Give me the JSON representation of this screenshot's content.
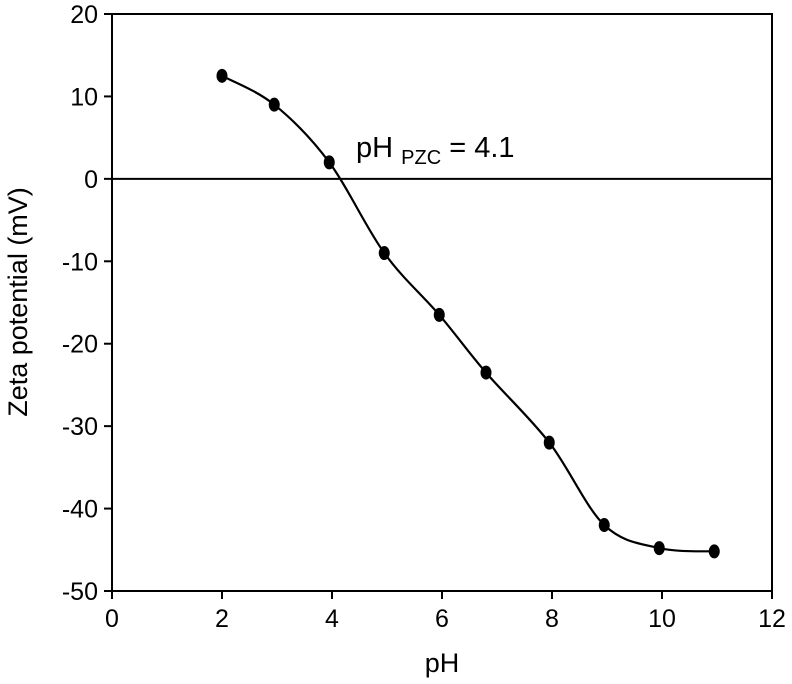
{
  "chart_data": {
    "type": "line",
    "xlabel": "pH",
    "ylabel": "Zeta potential (mV)",
    "xlim": [
      0,
      12
    ],
    "ylim": [
      -50,
      20
    ],
    "xticks": [
      0,
      2,
      4,
      6,
      8,
      10,
      12
    ],
    "yticks": [
      20,
      10,
      0,
      -10,
      -20,
      -30,
      -40,
      -50
    ],
    "grid": false,
    "series": [
      {
        "x": [
          2.0,
          2.95,
          3.95,
          4.95,
          5.95,
          6.8,
          7.95,
          8.95,
          9.95,
          10.95
        ],
        "y": [
          12.5,
          9.0,
          2.0,
          -9.0,
          -16.5,
          -23.5,
          -32.0,
          -42.0,
          -44.8,
          -45.2
        ],
        "smoothed": true,
        "markers": true,
        "color": "#000000"
      }
    ],
    "annotation": {
      "main": "pH",
      "subscript": "PZC",
      "suffix": " = 4.1"
    }
  }
}
